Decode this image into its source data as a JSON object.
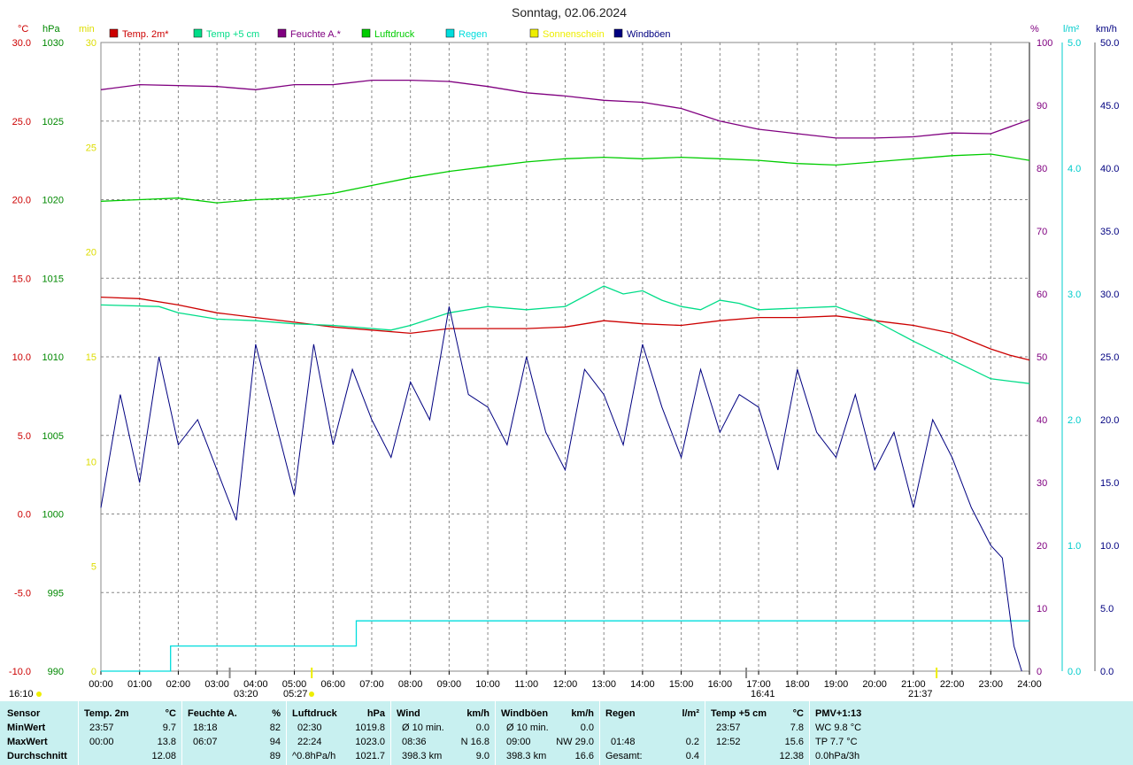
{
  "page_title": "Sonntag, 02.06.2024",
  "axis_units": {
    "temp": "°C",
    "pressure": "hPa",
    "sun": "min",
    "humidity": "%",
    "rain": "l/m²",
    "wind": "km/h"
  },
  "colors": {
    "temp2m": "#cc0000",
    "temp5cm": "#00dd88",
    "humidity": "#800080",
    "pressure": "#00cc00",
    "rain": "#00dddd",
    "sun": "#eeee00",
    "wind": "#000080",
    "grid": "#888888",
    "temp_axis": "#cc0000",
    "pressure_axis": "#008800",
    "sun_axis": "#dddd00",
    "humidity_axis": "#800080",
    "rain_axis": "#00cccc",
    "wind_axis": "#000080",
    "stats_bg": "#c8f0f0"
  },
  "legend": [
    {
      "label": "Temp. 2m*",
      "color": "#cc0000"
    },
    {
      "label": "Temp +5 cm",
      "color": "#00dd88"
    },
    {
      "label": "Feuchte A.*",
      "color": "#800080"
    },
    {
      "label": "Luftdruck",
      "color": "#00cc00"
    },
    {
      "label": "Regen",
      "color": "#00dddd"
    },
    {
      "label": "Sonnenschein",
      "color": "#eeee00"
    },
    {
      "label": "Windböen",
      "color": "#000080"
    }
  ],
  "sun_events": {
    "sunrise": "05:27",
    "sunset": "21:37",
    "day_start_label": "16:10",
    "markers": [
      "03:20",
      "16:41"
    ]
  },
  "chart_data": {
    "type": "line",
    "title": "Sonntag, 02.06.2024",
    "x_ticks": [
      "00:00",
      "01:00",
      "02:00",
      "03:00",
      "04:00",
      "05:00",
      "06:00",
      "07:00",
      "08:00",
      "09:00",
      "10:00",
      "11:00",
      "12:00",
      "13:00",
      "14:00",
      "15:00",
      "16:00",
      "17:00",
      "18:00",
      "19:00",
      "20:00",
      "21:00",
      "22:00",
      "23:00",
      "24:00"
    ],
    "x_range_hours": [
      0,
      24
    ],
    "axes": {
      "temp": {
        "unit": "°C",
        "range": [
          -10,
          30
        ],
        "ticks": [
          "30.0",
          "25.0",
          "20.0",
          "15.0",
          "10.0",
          "5.0",
          "0.0",
          "-5.0",
          "-10.0"
        ]
      },
      "pressure": {
        "unit": "hPa",
        "range": [
          990,
          1030
        ],
        "ticks": [
          "1030",
          "1025",
          "1020",
          "1015",
          "1010",
          "1005",
          "1000",
          "995",
          "990"
        ]
      },
      "sun": {
        "unit": "min",
        "range": [
          0,
          30
        ],
        "ticks": [
          "30",
          "25",
          "20",
          "15",
          "10",
          "5",
          "0"
        ]
      },
      "humidity": {
        "unit": "%",
        "range": [
          0,
          100
        ],
        "ticks": [
          "100",
          "90",
          "80",
          "70",
          "60",
          "50",
          "40",
          "30",
          "20",
          "10",
          "0"
        ]
      },
      "rain": {
        "unit": "l/m²",
        "range": [
          0,
          5
        ],
        "ticks": [
          "5.0",
          "4.0",
          "3.0",
          "2.0",
          "1.0",
          "0.0"
        ]
      },
      "wind": {
        "unit": "km/h",
        "range": [
          0,
          50
        ],
        "ticks": [
          "50.0",
          "45.0",
          "40.0",
          "35.0",
          "30.0",
          "25.0",
          "20.0",
          "15.0",
          "10.0",
          "5.0",
          "0.0"
        ]
      }
    },
    "grid": true,
    "series": [
      {
        "name": "Temp. 2m*",
        "axis": "temp",
        "points": [
          [
            0,
            13.8
          ],
          [
            1,
            13.7
          ],
          [
            2,
            13.3
          ],
          [
            3,
            12.8
          ],
          [
            4,
            12.5
          ],
          [
            5,
            12.2
          ],
          [
            6,
            11.9
          ],
          [
            7,
            11.7
          ],
          [
            8,
            11.5
          ],
          [
            9,
            11.8
          ],
          [
            10,
            11.8
          ],
          [
            11,
            11.8
          ],
          [
            12,
            11.9
          ],
          [
            13,
            12.3
          ],
          [
            14,
            12.1
          ],
          [
            15,
            12.0
          ],
          [
            16,
            12.3
          ],
          [
            17,
            12.5
          ],
          [
            18,
            12.5
          ],
          [
            19,
            12.6
          ],
          [
            20,
            12.3
          ],
          [
            21,
            12.0
          ],
          [
            22,
            11.5
          ],
          [
            23,
            10.5
          ],
          [
            23.5,
            10.1
          ],
          [
            24,
            9.8
          ]
        ]
      },
      {
        "name": "Temp +5 cm",
        "axis": "temp",
        "points": [
          [
            0,
            13.3
          ],
          [
            1.5,
            13.2
          ],
          [
            2,
            12.8
          ],
          [
            3,
            12.4
          ],
          [
            4,
            12.3
          ],
          [
            5,
            12.1
          ],
          [
            6,
            12.0
          ],
          [
            7.5,
            11.7
          ],
          [
            8,
            12.0
          ],
          [
            9,
            12.8
          ],
          [
            10,
            13.2
          ],
          [
            11,
            13.0
          ],
          [
            12,
            13.2
          ],
          [
            13,
            14.5
          ],
          [
            13.5,
            14.0
          ],
          [
            14,
            14.2
          ],
          [
            14.5,
            13.6
          ],
          [
            15,
            13.2
          ],
          [
            15.5,
            13.0
          ],
          [
            16,
            13.6
          ],
          [
            16.5,
            13.4
          ],
          [
            17,
            13.0
          ],
          [
            18,
            13.1
          ],
          [
            19,
            13.2
          ],
          [
            20,
            12.3
          ],
          [
            21,
            11.0
          ],
          [
            22,
            9.8
          ],
          [
            23,
            8.6
          ],
          [
            24,
            8.3
          ]
        ]
      },
      {
        "name": "Feuchte A.*",
        "axis": "humidity",
        "points": [
          [
            0,
            92.5
          ],
          [
            1,
            93.3
          ],
          [
            3,
            93.0
          ],
          [
            4,
            92.5
          ],
          [
            5,
            93.3
          ],
          [
            6,
            93.3
          ],
          [
            7,
            94.0
          ],
          [
            8,
            94.0
          ],
          [
            9,
            93.8
          ],
          [
            10,
            93.0
          ],
          [
            11,
            92.0
          ],
          [
            12,
            91.5
          ],
          [
            13,
            90.8
          ],
          [
            14,
            90.5
          ],
          [
            15,
            89.5
          ],
          [
            16,
            87.5
          ],
          [
            17,
            86.2
          ],
          [
            18,
            85.5
          ],
          [
            19,
            84.8
          ],
          [
            20,
            84.8
          ],
          [
            21,
            85.0
          ],
          [
            22,
            85.6
          ],
          [
            23,
            85.5
          ],
          [
            24,
            87.7
          ]
        ]
      },
      {
        "name": "Luftdruck",
        "axis": "pressure",
        "points": [
          [
            0,
            1019.9
          ],
          [
            1,
            1020.0
          ],
          [
            2,
            1020.1
          ],
          [
            3,
            1019.8
          ],
          [
            4,
            1020.0
          ],
          [
            5,
            1020.1
          ],
          [
            6,
            1020.4
          ],
          [
            7,
            1020.9
          ],
          [
            8,
            1021.4
          ],
          [
            9,
            1021.8
          ],
          [
            10,
            1022.1
          ],
          [
            11,
            1022.4
          ],
          [
            12,
            1022.6
          ],
          [
            13,
            1022.7
          ],
          [
            14,
            1022.6
          ],
          [
            15,
            1022.7
          ],
          [
            16,
            1022.6
          ],
          [
            17,
            1022.5
          ],
          [
            18,
            1022.3
          ],
          [
            19,
            1022.2
          ],
          [
            20,
            1022.4
          ],
          [
            21,
            1022.6
          ],
          [
            22,
            1022.8
          ],
          [
            23,
            1022.9
          ],
          [
            24,
            1022.5
          ]
        ]
      },
      {
        "name": "Regen",
        "axis": "rain",
        "points": [
          [
            0,
            0
          ],
          [
            1.8,
            0
          ],
          [
            1.8,
            0.2
          ],
          [
            6.6,
            0.2
          ],
          [
            6.6,
            0.4
          ],
          [
            24,
            0.4
          ]
        ]
      },
      {
        "name": "Windböen",
        "axis": "wind",
        "points": [
          [
            0,
            13
          ],
          [
            0.5,
            22
          ],
          [
            1,
            15
          ],
          [
            1.5,
            25
          ],
          [
            2,
            18
          ],
          [
            2.5,
            20
          ],
          [
            3,
            16
          ],
          [
            3.5,
            12
          ],
          [
            4,
            26
          ],
          [
            4.5,
            20
          ],
          [
            5,
            14
          ],
          [
            5.5,
            26
          ],
          [
            6,
            18
          ],
          [
            6.5,
            24
          ],
          [
            7,
            20
          ],
          [
            7.5,
            17
          ],
          [
            8,
            23
          ],
          [
            8.5,
            20
          ],
          [
            9,
            29
          ],
          [
            9.5,
            22
          ],
          [
            10,
            21
          ],
          [
            10.5,
            18
          ],
          [
            11,
            25
          ],
          [
            11.5,
            19
          ],
          [
            12,
            16
          ],
          [
            12.5,
            24
          ],
          [
            13,
            22
          ],
          [
            13.5,
            18
          ],
          [
            14,
            26
          ],
          [
            14.5,
            21
          ],
          [
            15,
            17
          ],
          [
            15.5,
            24
          ],
          [
            16,
            19
          ],
          [
            16.5,
            22
          ],
          [
            17,
            21
          ],
          [
            17.5,
            16
          ],
          [
            18,
            24
          ],
          [
            18.5,
            19
          ],
          [
            19,
            17
          ],
          [
            19.5,
            22
          ],
          [
            20,
            16
          ],
          [
            20.5,
            19
          ],
          [
            21,
            13
          ],
          [
            21.5,
            20
          ],
          [
            22,
            17
          ],
          [
            22.5,
            13
          ],
          [
            23,
            10
          ],
          [
            23.3,
            9
          ],
          [
            23.6,
            2
          ],
          [
            23.8,
            0
          ]
        ]
      }
    ]
  },
  "stats": {
    "sensor": {
      "header": "Sensor",
      "min": "MinWert",
      "max": "MaxWert",
      "avg": "Durchschnitt"
    },
    "temp2m": {
      "header": "Temp. 2m",
      "unit": "°C",
      "min_time": "23:57",
      "min": "9.7",
      "max_time": "00:00",
      "max": "13.8",
      "avg": "12.08"
    },
    "humidity": {
      "header": "Feuchte A.",
      "unit": "%",
      "min_time": "18:18",
      "min": "82",
      "max_time": "06:07",
      "max": "94",
      "avg": "89"
    },
    "pressure": {
      "header": "Luftdruck",
      "unit": "hPa",
      "min_time": "02:30",
      "min": "1019.8",
      "max_time": "22:24",
      "max": "1023.0",
      "avg_trend": "^0.8hPa/h",
      "avg": "1021.7"
    },
    "wind": {
      "header": "Wind",
      "unit": "km/h",
      "min_label": "Ø 10 min.",
      "min": "0.0",
      "max_time": "08:36",
      "max": "N 16.8",
      "avg_dist": "398.3 km",
      "avg": "9.0"
    },
    "gusts": {
      "header": "Windböen",
      "unit": "km/h",
      "min_label": "Ø 10 min.",
      "min": "0.0",
      "max_time": "09:00",
      "max": "NW 29.0",
      "avg_dist": "398.3 km",
      "avg": "16.6"
    },
    "rain": {
      "header": "Regen",
      "unit": "l/m²",
      "max_time": "01:48",
      "max": "0.2",
      "total_label": "Gesamt:",
      "total": "0.4"
    },
    "temp5cm": {
      "header": "Temp +5 cm",
      "unit": "°C",
      "min_time": "23:57",
      "min": "7.8",
      "max_time": "12:52",
      "max": "15.6",
      "avg": "12.38"
    },
    "pmv": {
      "header": "PMV+1:13",
      "wc": "WC 9.8 °C",
      "tp": "TP 7.7 °C",
      "trend": "0.0hPa/3h"
    }
  }
}
